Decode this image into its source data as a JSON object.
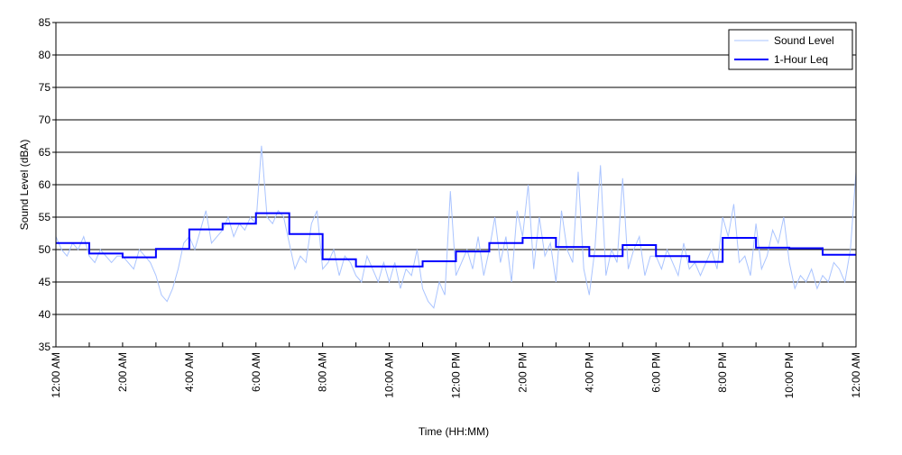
{
  "chart_data": {
    "type": "line",
    "title": "",
    "xlabel": "Time (HH:MM)",
    "ylabel": "Sound Level (dBA)",
    "ylim": [
      35,
      85
    ],
    "yticks": [
      35,
      40,
      45,
      50,
      55,
      60,
      65,
      70,
      75,
      80,
      85
    ],
    "xlim_hours": [
      0,
      24
    ],
    "xtick_labels": [
      "12:00 AM",
      "2:00 AM",
      "4:00 AM",
      "6:00 AM",
      "8:00 AM",
      "10:00 AM",
      "12:00 PM",
      "2:00 PM",
      "4:00 PM",
      "6:00 PM",
      "8:00 PM",
      "10:00 PM",
      "12:00 AM"
    ],
    "grid": "horizontal",
    "legend_placement": "top-right",
    "series": [
      {
        "name": "Sound Level",
        "color": "#aac4ff",
        "sample_interval_minutes": 10,
        "values": [
          52,
          50,
          49,
          51,
          50,
          52,
          49,
          48,
          50,
          49,
          48,
          49,
          49,
          48,
          47,
          50,
          49,
          48,
          46,
          43,
          42,
          44,
          47,
          51,
          52,
          50,
          53,
          56,
          51,
          52,
          53,
          55,
          52,
          54,
          53,
          55,
          54,
          66,
          55,
          54,
          56,
          55,
          51,
          47,
          49,
          48,
          54,
          56,
          47,
          48,
          50,
          46,
          49,
          48,
          46,
          45,
          49,
          47,
          45,
          48,
          45,
          48,
          44,
          47,
          46,
          50,
          44,
          42,
          41,
          45,
          43,
          59,
          46,
          48,
          50,
          47,
          52,
          46,
          50,
          55,
          48,
          52,
          45,
          56,
          52,
          60,
          47,
          55,
          49,
          51,
          45,
          56,
          50,
          48,
          62,
          47,
          43,
          50,
          63,
          46,
          50,
          48,
          61,
          47,
          50,
          52,
          46,
          49,
          49,
          47,
          50,
          48,
          46,
          51,
          47,
          48,
          46,
          48,
          50,
          47,
          55,
          52,
          57,
          48,
          49,
          46,
          54,
          47,
          49,
          53,
          51,
          55,
          48,
          44,
          46,
          45,
          47,
          44,
          46,
          45,
          48,
          47,
          45,
          50,
          62
        ]
      },
      {
        "name": "1-Hour Leq",
        "color": "#0000ff",
        "step": "hourly",
        "values": [
          51.0,
          49.4,
          48.8,
          50.1,
          53.1,
          54.0,
          55.6,
          52.4,
          48.5,
          47.4,
          47.4,
          48.2,
          49.7,
          51.0,
          51.8,
          50.4,
          49.0,
          50.7,
          49.0,
          48.1,
          51.8,
          50.3,
          50.2,
          49.2
        ]
      }
    ]
  }
}
